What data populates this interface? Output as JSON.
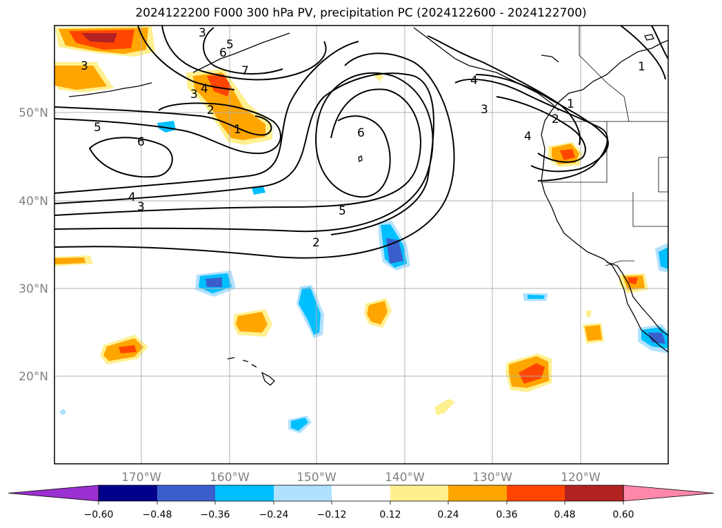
{
  "title": "2024122200 F000 300 hPa PV, precipitation PC (2024122600 - 2024122700)",
  "lat_labels": [
    "50°N",
    "40°N",
    "30°N",
    "20°N"
  ],
  "lon_labels": [
    "170°W",
    "160°W",
    "150°W",
    "140°W",
    "130°W",
    "120°W"
  ],
  "contour_labels": [
    {
      "id": "c1",
      "text": "3"
    },
    {
      "id": "c2",
      "text": "5"
    },
    {
      "id": "c3",
      "text": "6"
    },
    {
      "id": "c4",
      "text": "7"
    },
    {
      "id": "c5",
      "text": "3"
    },
    {
      "id": "c6",
      "text": "4"
    },
    {
      "id": "c7",
      "text": "2"
    },
    {
      "id": "c8",
      "text": "1"
    },
    {
      "id": "c9",
      "text": "5"
    },
    {
      "id": "c10",
      "text": "6"
    },
    {
      "id": "c11",
      "text": "4"
    },
    {
      "id": "c12",
      "text": "3"
    },
    {
      "id": "c13",
      "text": "6"
    },
    {
      "id": "c14",
      "text": "5"
    },
    {
      "id": "c15",
      "text": "2"
    },
    {
      "id": "c16",
      "text": "3"
    },
    {
      "id": "c17",
      "text": "4"
    },
    {
      "id": "c18",
      "text": "1"
    },
    {
      "id": "c19",
      "text": "1"
    },
    {
      "id": "c20",
      "text": "4"
    },
    {
      "id": "c21",
      "text": "2"
    },
    {
      "id": "c22",
      "text": "3"
    }
  ],
  "colorbar": {
    "colors": [
      "#9b30d0",
      "#00008b",
      "#3a5fcd",
      "#00bfff",
      "#b0e2ff",
      "#ffffff",
      "#fff08f",
      "#ffa500",
      "#ff4500",
      "#b22222",
      "#ff88aa"
    ],
    "tick_labels": [
      "−0.60",
      "−0.48",
      "−0.36",
      "−0.24",
      "−0.12",
      "0.12",
      "0.24",
      "0.36",
      "0.48",
      "0.60"
    ]
  }
}
